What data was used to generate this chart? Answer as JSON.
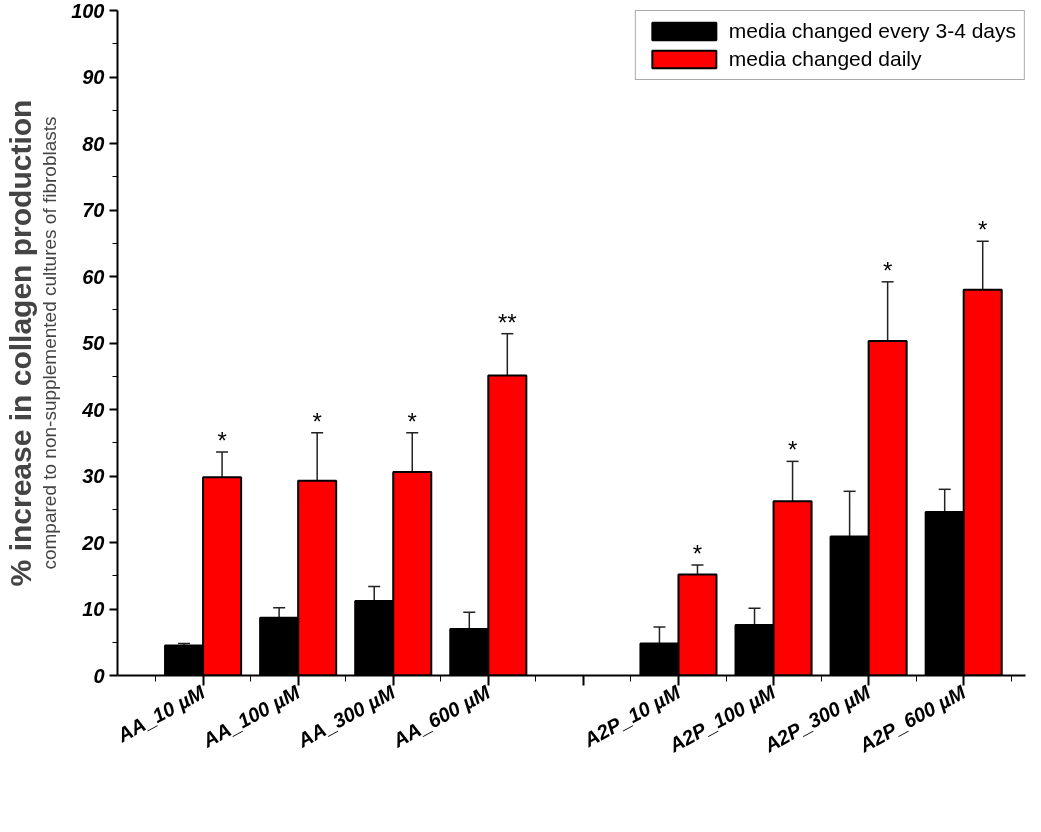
{
  "chart_data": {
    "type": "bar",
    "ylabel": "% increase in collagen production",
    "categories": [
      "AA_10 µM",
      "AA_100 µM",
      "AA_300 µM",
      "AA_600 µM",
      null,
      "A2P_10 µM",
      "A2P_100 µM",
      "A2P_300 µM",
      "A2P_600 µM"
    ],
    "series": [
      {
        "name": "media changed every 3-4 days",
        "color": "#000000",
        "values": [
          4.5,
          8.7,
          11.2,
          7.0,
          null,
          4.8,
          7.6,
          20.9,
          24.6
        ],
        "errors": [
          0.3,
          1.5,
          2.2,
          2.5,
          null,
          2.5,
          2.5,
          6.8,
          3.4
        ]
      },
      {
        "name": "media changed daily",
        "color": "#ff0000",
        "values": [
          29.8,
          29.3,
          30.6,
          45.1,
          null,
          15.2,
          26.2,
          50.3,
          58.0
        ],
        "errors": [
          3.8,
          7.2,
          5.9,
          6.3,
          null,
          1.4,
          6.0,
          8.9,
          7.3
        ]
      }
    ],
    "ylim": [
      0,
      100
    ],
    "yticks": [
      0,
      10,
      20,
      30,
      40,
      50,
      60,
      70,
      80,
      90,
      100
    ],
    "legend": "top right",
    "annotations": [
      "compared to non-supplemented cultures of fibroblasts",
      {
        "text": "*",
        "x": "AA_10 µM",
        "y": 29.8
      },
      {
        "text": "*",
        "x": "AA_100 µM",
        "y": 29.3
      },
      {
        "text": "*",
        "x": "AA_300 µM",
        "y": 30.6
      },
      {
        "text": "**",
        "x": "AA_600 µM",
        "y": 45.1
      },
      {
        "text": "*",
        "x": "A2P_10 µM",
        "y": 15.2
      },
      {
        "text": "*",
        "x": "A2P_100 µM",
        "y": 26.2
      },
      {
        "text": "*",
        "x": "A2P_300 µM",
        "y": 50.3
      },
      {
        "text": "*",
        "x": "A2P_600 µM",
        "y": 58.0
      }
    ]
  }
}
